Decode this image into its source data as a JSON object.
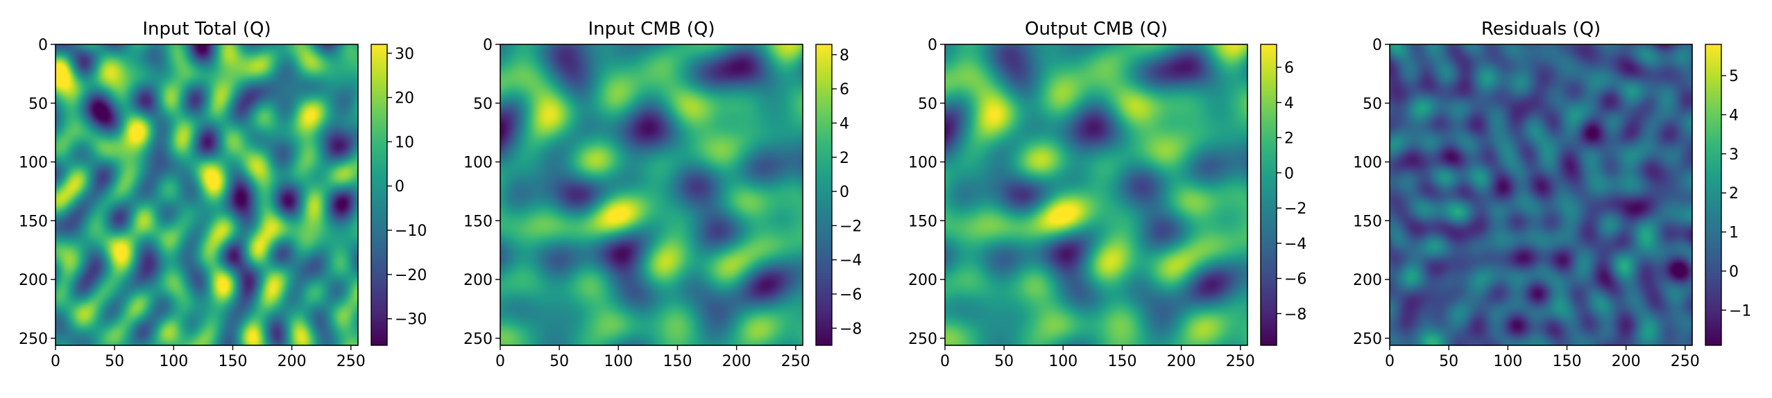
{
  "chart_data": [
    {
      "type": "heatmap",
      "title": "Input Total (Q)",
      "xlabel": "",
      "ylabel": "",
      "xlim": [
        0,
        256
      ],
      "ylim": [
        256,
        0
      ],
      "x_ticks": [
        "0",
        "50",
        "100",
        "150",
        "200",
        "250"
      ],
      "y_ticks": [
        "0",
        "50",
        "100",
        "150",
        "200",
        "250"
      ],
      "colorbar": {
        "range": [
          -36,
          32
        ],
        "ticks": [
          30,
          20,
          10,
          0,
          -10,
          -20,
          -30
        ],
        "tick_labels": [
          "30",
          "20",
          "10",
          "0",
          "−10",
          "−20",
          "−30"
        ]
      },
      "colormap": "viridis",
      "field": {
        "seed": 11,
        "scale": 2.0,
        "bias": 0.55,
        "spread": 1.2
      }
    },
    {
      "type": "heatmap",
      "title": "Input CMB (Q)",
      "xlabel": "",
      "ylabel": "",
      "xlim": [
        0,
        256
      ],
      "ylim": [
        256,
        0
      ],
      "x_ticks": [
        "0",
        "50",
        "100",
        "150",
        "200",
        "250"
      ],
      "y_ticks": [
        "0",
        "50",
        "100",
        "150",
        "200",
        "250"
      ],
      "colorbar": {
        "range": [
          -9,
          8.6
        ],
        "ticks": [
          8,
          6,
          4,
          2,
          0,
          -2,
          -4,
          -6,
          -8
        ],
        "tick_labels": [
          "8",
          "6",
          "4",
          "2",
          "0",
          "−2",
          "−4",
          "−6",
          "−8"
        ]
      },
      "colormap": "viridis",
      "field": {
        "seed": 27,
        "scale": 1.4,
        "bias": 0.53,
        "spread": 1.1
      }
    },
    {
      "type": "heatmap",
      "title": "Output CMB (Q)",
      "xlabel": "",
      "ylabel": "",
      "xlim": [
        0,
        256
      ],
      "ylim": [
        256,
        0
      ],
      "x_ticks": [
        "0",
        "50",
        "100",
        "150",
        "200",
        "250"
      ],
      "y_ticks": [
        "0",
        "50",
        "100",
        "150",
        "200",
        "250"
      ],
      "colorbar": {
        "range": [
          -9.8,
          7.3
        ],
        "ticks": [
          6,
          4,
          2,
          0,
          -2,
          -4,
          -6,
          -8
        ],
        "tick_labels": [
          "6",
          "4",
          "2",
          "0",
          "−2",
          "−4",
          "−6",
          "−8"
        ]
      },
      "colormap": "viridis",
      "field": {
        "seed": 27,
        "scale": 1.4,
        "bias": 0.56,
        "spread": 1.1
      }
    },
    {
      "type": "heatmap",
      "title": "Residuals (Q)",
      "xlabel": "",
      "ylabel": "",
      "xlim": [
        0,
        256
      ],
      "ylim": [
        256,
        0
      ],
      "x_ticks": [
        "0",
        "50",
        "100",
        "150",
        "200",
        "250"
      ],
      "y_ticks": [
        "0",
        "50",
        "100",
        "150",
        "200",
        "250"
      ],
      "colorbar": {
        "range": [
          -1.9,
          5.8
        ],
        "ticks": [
          5,
          4,
          3,
          2,
          1,
          0,
          -1
        ],
        "tick_labels": [
          "5",
          "4",
          "3",
          "2",
          "1",
          "0",
          "−1"
        ]
      },
      "colormap": "viridis",
      "field": {
        "seed": 53,
        "scale": 2.2,
        "bias": 0.3,
        "spread": 0.7
      }
    }
  ]
}
